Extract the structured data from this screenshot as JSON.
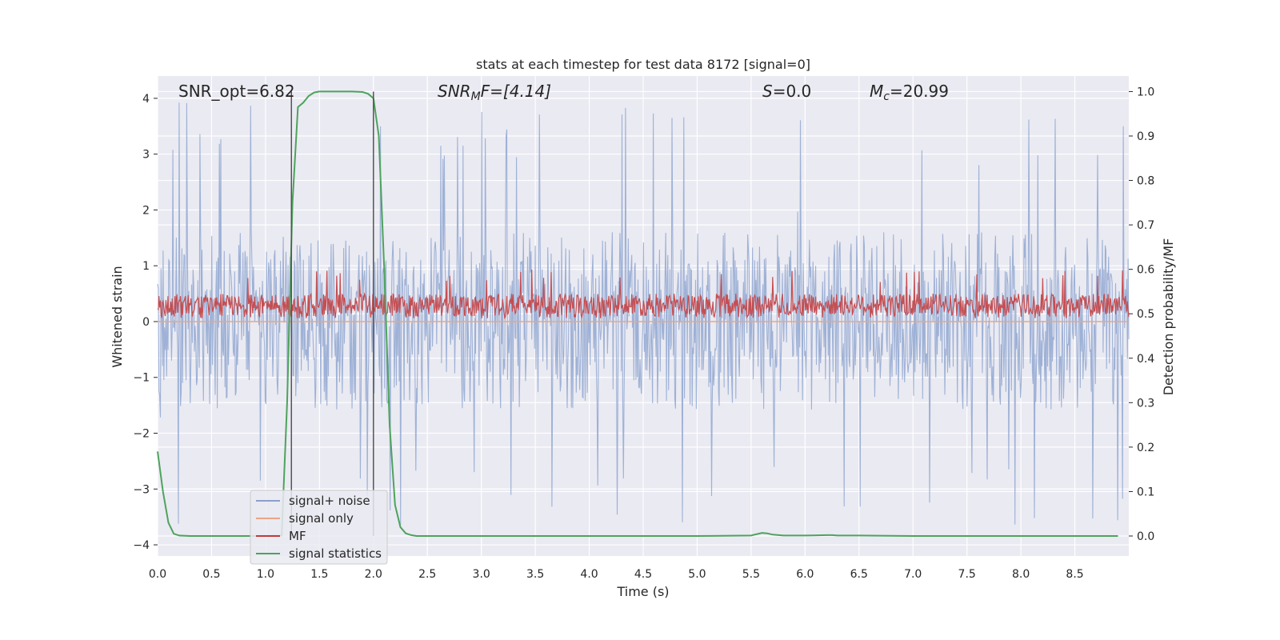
{
  "chart_data": {
    "type": "line",
    "title": "stats at each timestep for test data 8172 [signal=0]",
    "xlabel": "Time (s)",
    "ylabel": "Whitened strain",
    "y2label": "Detection probability/MF",
    "xlim": [
      0.0,
      9.0
    ],
    "ylim": [
      -4.2,
      4.4
    ],
    "y2lim": [
      -0.045,
      1.035
    ],
    "xticks": [
      "0.0",
      "0.5",
      "1.0",
      "1.5",
      "2.0",
      "2.5",
      "3.0",
      "3.5",
      "4.0",
      "4.5",
      "5.0",
      "5.5",
      "6.0",
      "6.5",
      "7.0",
      "7.5",
      "8.0",
      "8.5"
    ],
    "yticks": [
      "−4",
      "−3",
      "−2",
      "−1",
      "0",
      "1",
      "2",
      "3",
      "4"
    ],
    "y2ticks": [
      "0.0",
      "0.1",
      "0.2",
      "0.3",
      "0.4",
      "0.5",
      "0.6",
      "0.7",
      "0.8",
      "0.9",
      "1.0"
    ],
    "annotations": {
      "snr_opt": "SNR_opt=6.82",
      "snr_mf_main": "SNR",
      "snr_mf_sub": "M",
      "snr_mf_rest": "F=[4.14]",
      "s_main": "S",
      "s_rest": "=0.0",
      "mc_main": "M",
      "mc_sub": "c",
      "mc_rest": "=20.99"
    },
    "legend": {
      "position": "lower-left",
      "entries": [
        {
          "label": "signal+ noise",
          "color": "#8c9fcc"
        },
        {
          "label": "signal only",
          "color": "#e9a584"
        },
        {
          "label": "MF",
          "color": "#c03a3a"
        },
        {
          "label": "signal statistics",
          "color": "#4ea35c"
        }
      ]
    },
    "series": [
      {
        "name": "signal+ noise",
        "axis": "left",
        "kind": "noise",
        "x_range": [
          0.0,
          9.0
        ],
        "envelope_typical": [
          -1.5,
          1.6
        ],
        "envelope_extreme": [
          -3.7,
          4.0
        ],
        "color": "#9aaed4"
      },
      {
        "name": "signal only",
        "axis": "left",
        "x": [
          0.0,
          9.0
        ],
        "y": [
          0.0,
          0.0
        ],
        "color": "#e9a584"
      },
      {
        "name": "MF",
        "axis": "right",
        "kind": "noise",
        "x_range": [
          0.0,
          9.0
        ],
        "envelope_typical": [
          0.495,
          0.545
        ],
        "envelope_extreme": [
          0.49,
          0.6
        ],
        "color": "#c44e52"
      },
      {
        "name": "signal statistics",
        "axis": "right",
        "x": [
          0.0,
          0.05,
          0.1,
          0.15,
          0.2,
          0.3,
          0.5,
          0.8,
          1.0,
          1.15,
          1.2,
          1.25,
          1.3,
          1.35,
          1.4,
          1.45,
          1.5,
          1.6,
          1.7,
          1.8,
          1.9,
          1.95,
          2.0,
          2.05,
          2.1,
          2.15,
          2.2,
          2.25,
          2.3,
          2.35,
          2.4,
          2.5,
          3.0,
          4.0,
          5.0,
          5.5,
          5.6,
          5.65,
          5.7,
          5.8,
          6.0,
          6.2,
          6.25,
          6.3,
          6.5,
          7.0,
          8.0,
          8.5,
          8.9
        ],
        "y": [
          0.19,
          0.1,
          0.03,
          0.005,
          0.001,
          0.0,
          0.0,
          0.0,
          0.0,
          0.001,
          0.3,
          0.75,
          0.965,
          0.975,
          0.99,
          0.998,
          1.0,
          1.0,
          1.0,
          1.0,
          0.999,
          0.995,
          0.985,
          0.9,
          0.6,
          0.25,
          0.07,
          0.02,
          0.006,
          0.002,
          0.0,
          0.0,
          0.0,
          0.0,
          0.0,
          0.001,
          0.007,
          0.006,
          0.003,
          0.001,
          0.001,
          0.002,
          0.002,
          0.001,
          0.001,
          0.0,
          0.0,
          0.0,
          0.0
        ],
        "color": "#4ea35c"
      }
    ],
    "vlines": [
      {
        "x": 1.24,
        "y_from": 0.0,
        "y_to": 1.0,
        "axis": "right",
        "color": "#555555"
      },
      {
        "x": 2.0,
        "y_from": 0.0,
        "y_to": 1.0,
        "axis": "right",
        "color": "#555555"
      }
    ]
  }
}
